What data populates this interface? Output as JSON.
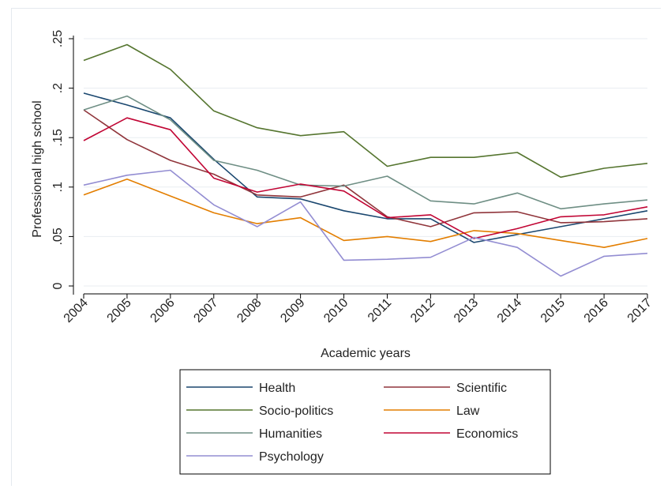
{
  "chart_data": {
    "type": "line",
    "xlabel": "Academic years",
    "ylabel": "Professional high school",
    "x": [
      2004,
      2005,
      2006,
      2007,
      2008,
      2009,
      2010,
      2011,
      2012,
      2013,
      2014,
      2015,
      2016,
      2017
    ],
    "xlim": [
      2004,
      2017
    ],
    "ylim": [
      0,
      0.25
    ],
    "yticks": [
      0,
      0.05,
      0.1,
      0.15,
      0.2,
      0.25
    ],
    "ytick_labels": [
      "0",
      ".05",
      ".1",
      ".15",
      ".2",
      ".25"
    ],
    "xtick_labels": [
      "2004",
      "2005",
      "2006",
      "2007",
      "2008",
      "2009",
      "2010",
      "2011",
      "2012",
      "2013",
      "2014",
      "2015",
      "2016",
      "2017"
    ],
    "grid": "horizontal",
    "legend_position": "bottom",
    "series": [
      {
        "name": "Health",
        "color": "#1a476f",
        "values": [
          0.195,
          0.183,
          0.17,
          0.128,
          0.09,
          0.088,
          0.076,
          0.068,
          0.068,
          0.044,
          0.052,
          0.06,
          0.068,
          0.076
        ]
      },
      {
        "name": "Scientific",
        "color": "#90353b",
        "values": [
          0.178,
          0.148,
          0.127,
          0.113,
          0.092,
          0.09,
          0.102,
          0.07,
          0.06,
          0.074,
          0.075,
          0.064,
          0.065,
          0.068
        ]
      },
      {
        "name": "Socio-politics",
        "color": "#55752f",
        "values": [
          0.228,
          0.244,
          0.219,
          0.177,
          0.16,
          0.152,
          0.156,
          0.121,
          0.13,
          0.13,
          0.135,
          0.11,
          0.119,
          0.124
        ]
      },
      {
        "name": "Law",
        "color": "#e37e00",
        "values": [
          0.092,
          0.108,
          0.091,
          0.074,
          0.063,
          0.069,
          0.046,
          0.05,
          0.045,
          0.056,
          0.053,
          0.046,
          0.039,
          0.048
        ]
      },
      {
        "name": "Humanities",
        "color": "#6e8e84",
        "values": [
          0.178,
          0.192,
          0.168,
          0.127,
          0.117,
          0.102,
          0.101,
          0.111,
          0.086,
          0.083,
          0.094,
          0.078,
          0.083,
          0.087
        ]
      },
      {
        "name": "Economics",
        "color": "#c10534",
        "values": [
          0.147,
          0.17,
          0.158,
          0.109,
          0.095,
          0.103,
          0.096,
          0.069,
          0.072,
          0.048,
          0.058,
          0.07,
          0.072,
          0.08
        ]
      },
      {
        "name": "Psychology",
        "color": "#938dd2",
        "values": [
          0.102,
          0.112,
          0.117,
          0.082,
          0.06,
          0.085,
          0.026,
          0.027,
          0.029,
          0.049,
          0.039,
          0.01,
          0.03,
          0.033
        ]
      }
    ]
  }
}
